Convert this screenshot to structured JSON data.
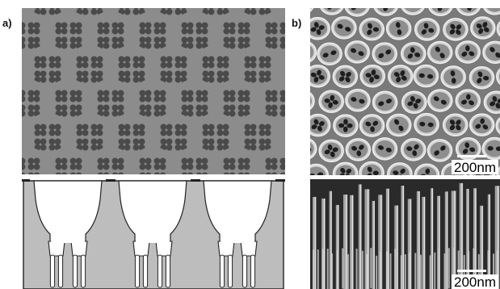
{
  "panels": {
    "a": {
      "label": "a)"
    },
    "b": {
      "label": "b)"
    }
  },
  "scale_bars": {
    "top": "200nm",
    "bottom": "200nm"
  },
  "colors": {
    "background_pattern": "#c6c6c6",
    "circle": "#8c8c8c",
    "pore": "#4a4a4a",
    "cross_section_fill": "#bdbdbd",
    "sem_dark": "#3a3a3a",
    "sem_light": "#d8d8d8"
  }
}
